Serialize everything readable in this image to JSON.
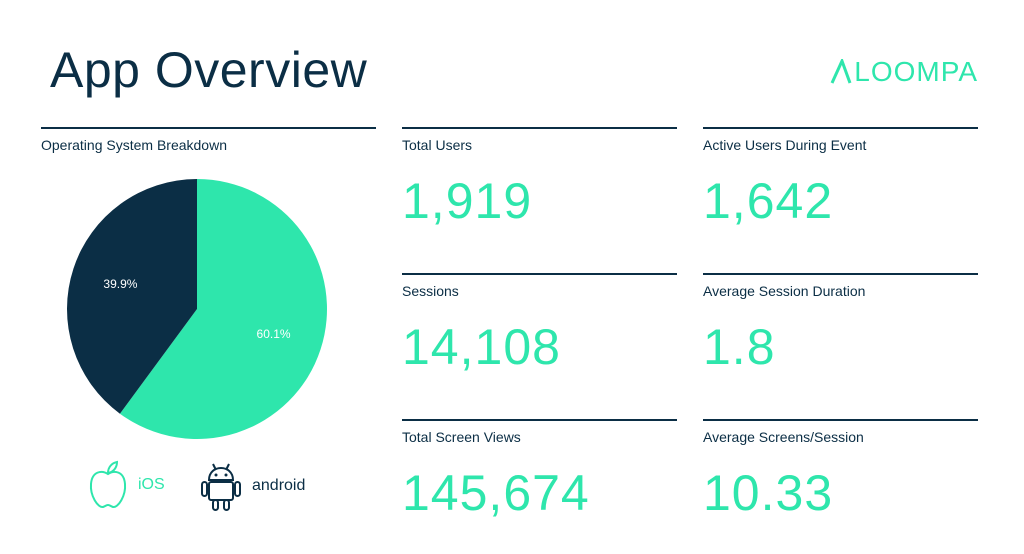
{
  "page": {
    "title": "App Overview",
    "logo_text": "LOOMPA"
  },
  "colors": {
    "navy": "#0b2e45",
    "mint": "#2ee6ac"
  },
  "chart_data": {
    "type": "pie",
    "title": "Operating System Breakdown",
    "slices": [
      {
        "label": "iOS",
        "value": 60.1,
        "value_label": "60.1%",
        "color": "#2ee6ac",
        "icon": "apple-icon"
      },
      {
        "label": "android",
        "value": 39.9,
        "value_label": "39.9%",
        "color": "#0b2e45",
        "icon": "android-icon"
      }
    ]
  },
  "metrics": {
    "total_users": {
      "label": "Total Users",
      "value": "1,919"
    },
    "active_users": {
      "label": "Active Users During Event",
      "value": "1,642"
    },
    "sessions": {
      "label": "Sessions",
      "value": "14,108"
    },
    "avg_session_duration": {
      "label": "Average Session Duration",
      "value": "1.8"
    },
    "total_screen_views": {
      "label": "Total Screen Views",
      "value": "145,674"
    },
    "avg_screens_session": {
      "label": "Average Screens/Session",
      "value": "10.33"
    }
  }
}
